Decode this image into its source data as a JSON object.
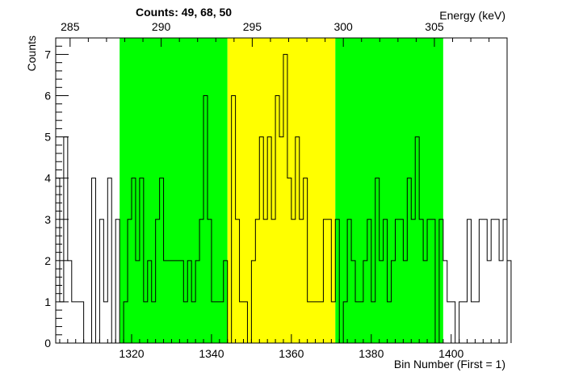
{
  "chart_data": {
    "type": "histogram",
    "title": "Counts:   49,   68,   50",
    "xlabel": "Bin Number (First = 1)",
    "ylabel": "Counts",
    "x2label": "Energy (keV)",
    "xlim": [
      1301,
      1414
    ],
    "ylim": [
      0,
      7.4
    ],
    "x_ticks": [
      "1320",
      "1340",
      "1360",
      "1380",
      "1400"
    ],
    "y_ticks": [
      "0",
      "1",
      "2",
      "3",
      "4",
      "5",
      "6",
      "7"
    ],
    "energy_ticks": [
      "285",
      "290",
      "295",
      "300",
      "305"
    ],
    "energy_tick_bins": [
      1304.6,
      1327.4,
      1350.2,
      1373.0,
      1395.8
    ],
    "regions": [
      {
        "name": "left background",
        "from": 1317,
        "to": 1344,
        "color": "#00ff00"
      },
      {
        "name": "peak",
        "from": 1344,
        "to": 1371,
        "color": "#ffff00"
      },
      {
        "name": "right background",
        "from": 1371,
        "to": 1398,
        "color": "#00ff00"
      }
    ],
    "bin_start": 1301,
    "bin_width": 1,
    "counts": [
      4,
      1,
      5,
      2,
      1,
      1,
      1,
      0,
      0,
      4,
      0,
      3,
      1,
      4,
      0,
      3,
      0,
      1,
      3,
      4,
      2,
      4,
      1,
      2,
      1,
      3,
      4,
      2,
      2,
      2,
      2,
      2,
      1,
      2,
      1,
      2,
      3,
      6,
      3,
      1,
      1,
      1,
      2,
      0,
      6,
      3,
      1,
      1,
      0,
      2,
      3,
      5,
      3,
      5,
      3,
      6,
      5,
      7,
      4,
      3,
      5,
      3,
      4,
      1,
      1,
      1,
      1,
      3,
      3,
      1,
      3,
      0,
      1,
      3,
      2,
      1,
      1,
      2,
      3,
      1,
      4,
      2,
      3,
      1,
      2,
      3,
      3,
      2,
      4,
      3,
      5,
      3,
      2,
      3,
      3,
      0,
      3,
      2,
      1,
      1,
      0,
      1,
      1,
      3,
      1,
      1,
      3,
      3,
      2,
      3,
      3,
      2,
      3,
      2
    ],
    "colors": {
      "peak": "#ffff00",
      "background": "#00ff00",
      "line": "#000000"
    },
    "grid": false
  }
}
